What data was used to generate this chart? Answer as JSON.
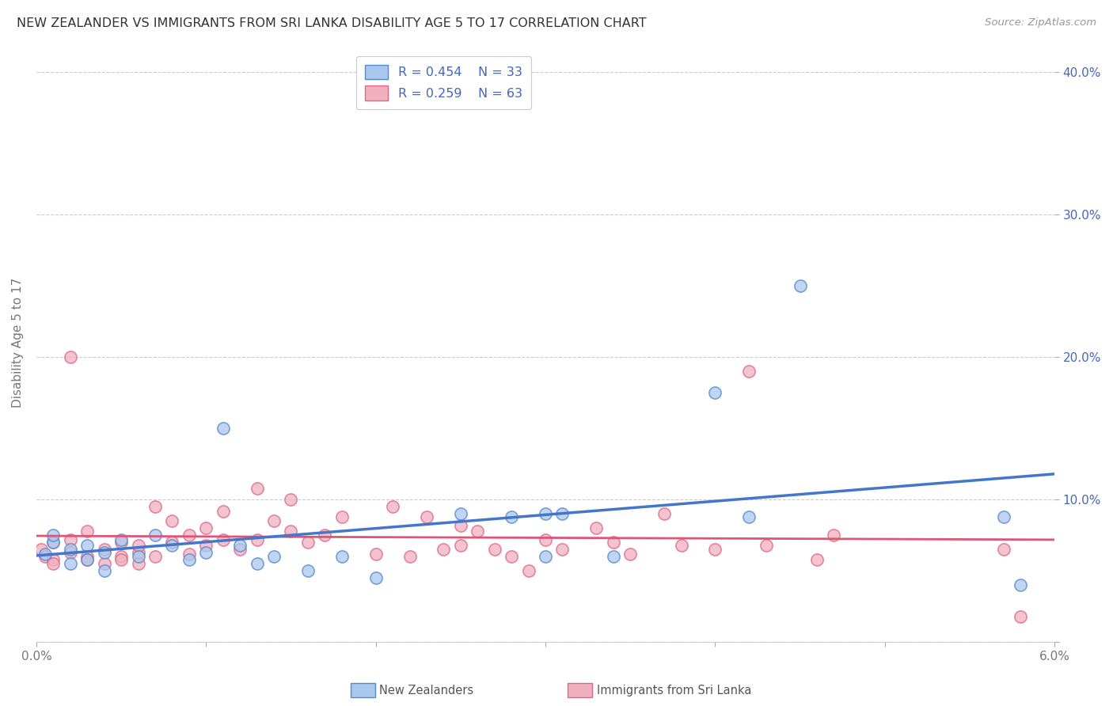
{
  "title": "NEW ZEALANDER VS IMMIGRANTS FROM SRI LANKA DISABILITY AGE 5 TO 17 CORRELATION CHART",
  "source": "Source: ZipAtlas.com",
  "ylabel": "Disability Age 5 to 17",
  "xlim": [
    0.0,
    0.06
  ],
  "ylim": [
    0.0,
    0.42
  ],
  "xticks": [
    0.0,
    0.01,
    0.02,
    0.03,
    0.04,
    0.05,
    0.06
  ],
  "xticklabels": [
    "0.0%",
    "",
    "",
    "",
    "",
    "",
    "6.0%"
  ],
  "yticks": [
    0.0,
    0.1,
    0.2,
    0.3,
    0.4
  ],
  "yticklabels_right": [
    "",
    "10.0%",
    "20.0%",
    "30.0%",
    "40.0%"
  ],
  "grid_color": "#cccccc",
  "background_color": "#ffffff",
  "blue_color": "#aac8ee",
  "pink_color": "#f0b0c0",
  "blue_edge_color": "#5588cc",
  "pink_edge_color": "#dd6688",
  "blue_line_color": "#4477cc",
  "pink_line_color": "#dd5577",
  "legend_r_blue": "R = 0.454",
  "legend_n_blue": "N = 33",
  "legend_r_pink": "R = 0.259",
  "legend_n_pink": "N = 63",
  "legend_text_color": "#4466bb",
  "blue_scatter_x": [
    0.0005,
    0.001,
    0.001,
    0.002,
    0.002,
    0.003,
    0.003,
    0.004,
    0.004,
    0.005,
    0.006,
    0.007,
    0.008,
    0.009,
    0.01,
    0.011,
    0.012,
    0.013,
    0.014,
    0.016,
    0.018,
    0.02,
    0.025,
    0.028,
    0.03,
    0.03,
    0.031,
    0.034,
    0.04,
    0.042,
    0.045,
    0.057,
    0.058
  ],
  "blue_scatter_y": [
    0.062,
    0.07,
    0.075,
    0.065,
    0.055,
    0.068,
    0.058,
    0.063,
    0.05,
    0.072,
    0.06,
    0.075,
    0.068,
    0.058,
    0.063,
    0.15,
    0.068,
    0.055,
    0.06,
    0.05,
    0.06,
    0.045,
    0.09,
    0.088,
    0.09,
    0.06,
    0.09,
    0.06,
    0.175,
    0.088,
    0.25,
    0.088,
    0.04
  ],
  "pink_scatter_x": [
    0.0003,
    0.0005,
    0.001,
    0.001,
    0.001,
    0.002,
    0.002,
    0.002,
    0.003,
    0.003,
    0.003,
    0.004,
    0.004,
    0.005,
    0.005,
    0.005,
    0.006,
    0.006,
    0.006,
    0.007,
    0.007,
    0.008,
    0.008,
    0.009,
    0.009,
    0.01,
    0.01,
    0.011,
    0.011,
    0.012,
    0.013,
    0.013,
    0.014,
    0.015,
    0.015,
    0.016,
    0.017,
    0.018,
    0.02,
    0.021,
    0.022,
    0.023,
    0.024,
    0.025,
    0.025,
    0.026,
    0.027,
    0.028,
    0.029,
    0.03,
    0.031,
    0.033,
    0.034,
    0.035,
    0.037,
    0.038,
    0.04,
    0.042,
    0.043,
    0.046,
    0.047,
    0.057,
    0.058
  ],
  "pink_scatter_y": [
    0.065,
    0.06,
    0.058,
    0.07,
    0.055,
    0.063,
    0.072,
    0.2,
    0.06,
    0.078,
    0.058,
    0.065,
    0.055,
    0.06,
    0.07,
    0.058,
    0.063,
    0.068,
    0.055,
    0.06,
    0.095,
    0.07,
    0.085,
    0.062,
    0.075,
    0.068,
    0.08,
    0.072,
    0.092,
    0.065,
    0.108,
    0.072,
    0.085,
    0.078,
    0.1,
    0.07,
    0.075,
    0.088,
    0.062,
    0.095,
    0.06,
    0.088,
    0.065,
    0.082,
    0.068,
    0.078,
    0.065,
    0.06,
    0.05,
    0.072,
    0.065,
    0.08,
    0.07,
    0.062,
    0.09,
    0.068,
    0.065,
    0.19,
    0.068,
    0.058,
    0.075,
    0.065,
    0.018
  ]
}
